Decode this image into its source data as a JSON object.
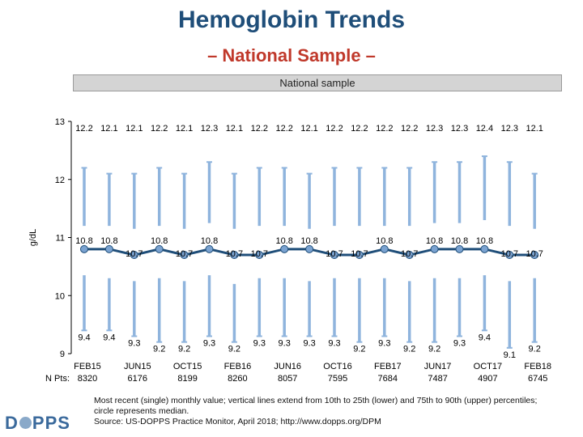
{
  "title": "Hemoglobin Trends",
  "subtitle": "– National Sample –",
  "panel_label": "National sample",
  "npts_label": "N Pts:",
  "logo": {
    "left": "D",
    "right": "PPS"
  },
  "footnote": {
    "line1": "Most recent (single) monthly value; vertical lines extend from 10th to 25th (lower) and 75th to 90th (upper) percentiles;",
    "line2": "circle represents median.",
    "line3": "Source: US-DOPPS Practice Monitor, April 2018; http://www.dopps.org/DPM"
  },
  "colors": {
    "line": "#1F4E79",
    "marker": "#7BA3D1",
    "whisker": "#8FB4DD",
    "text": "#000000"
  },
  "chart_data": {
    "type": "line",
    "ylabel": "g/dL",
    "ylim": [
      9,
      13
    ],
    "yticks": [
      9,
      10,
      11,
      12,
      13
    ],
    "x_labels": [
      {
        "label": "FEB15",
        "npts": "8320"
      },
      {
        "label": "JUN15",
        "npts": "6176"
      },
      {
        "label": "OCT15",
        "npts": "8199"
      },
      {
        "label": "FEB16",
        "npts": "8260"
      },
      {
        "label": "JUN16",
        "npts": "8057"
      },
      {
        "label": "OCT16",
        "npts": "7595"
      },
      {
        "label": "FEB17",
        "npts": "7684"
      },
      {
        "label": "JUN17",
        "npts": "7487"
      },
      {
        "label": "OCT17",
        "npts": "4907"
      },
      {
        "label": "FEB18",
        "npts": "6745"
      }
    ],
    "median": [
      10.8,
      10.8,
      10.7,
      10.8,
      10.7,
      10.8,
      10.7,
      10.7,
      10.8,
      10.8,
      10.7,
      10.7,
      10.8,
      10.7,
      10.8,
      10.8,
      10.8,
      10.7,
      10.7
    ],
    "p10": [
      9.4,
      9.4,
      9.3,
      9.2,
      9.2,
      9.3,
      9.2,
      9.3,
      9.3,
      9.3,
      9.3,
      9.2,
      9.3,
      9.2,
      9.2,
      9.3,
      9.4,
      9.1,
      9.2
    ],
    "p90": [
      12.2,
      12.1,
      12.1,
      12.2,
      12.1,
      12.3,
      12.1,
      12.2,
      12.2,
      12.1,
      12.2,
      12.2,
      12.2,
      12.2,
      12.3,
      12.3,
      12.4,
      12.3,
      12.1
    ],
    "p25": [
      10.35,
      10.3,
      10.25,
      10.3,
      10.25,
      10.35,
      10.2,
      10.3,
      10.3,
      10.25,
      10.3,
      10.3,
      10.3,
      10.25,
      10.3,
      10.3,
      10.35,
      10.25,
      10.3
    ],
    "p75": [
      11.2,
      11.2,
      11.15,
      11.2,
      11.15,
      11.25,
      11.15,
      11.2,
      11.2,
      11.15,
      11.2,
      11.2,
      11.2,
      11.2,
      11.25,
      11.25,
      11.3,
      11.2,
      11.15
    ]
  }
}
